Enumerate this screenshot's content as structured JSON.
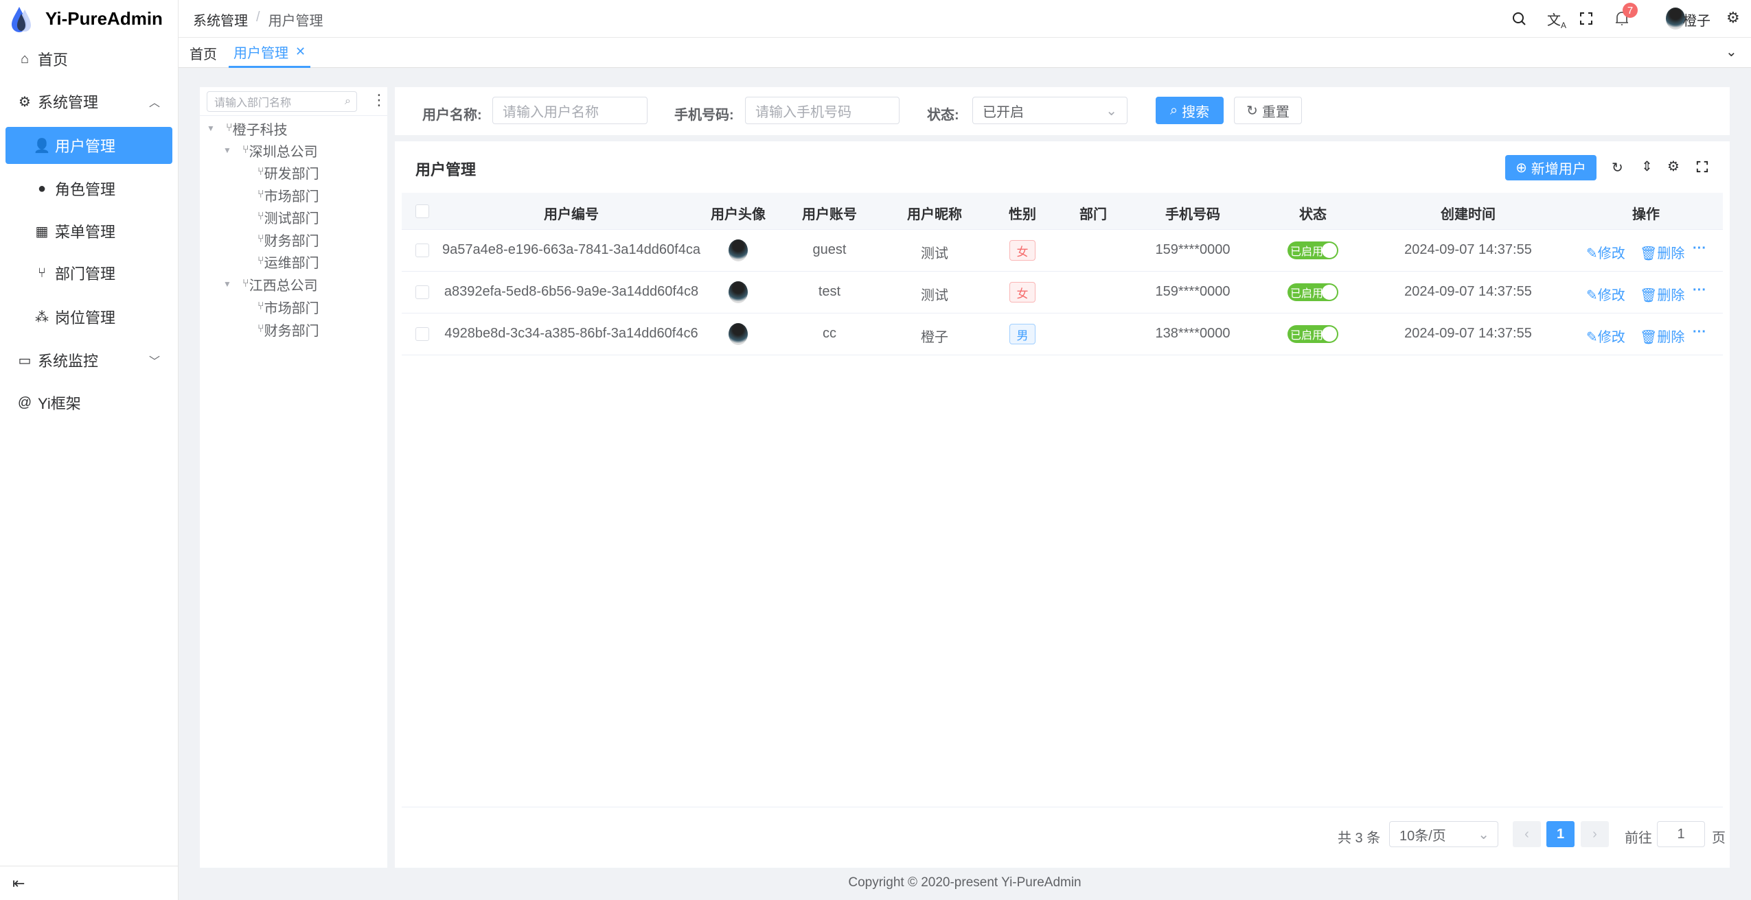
{
  "app": {
    "title": "Yi-PureAdmin",
    "footer": "Copyright © 2020-present Yi-PureAdmin"
  },
  "header": {
    "breadcrumb": [
      "系统管理",
      "用户管理"
    ],
    "notification_count": "7",
    "username": "橙子"
  },
  "tabs": [
    {
      "label": "首页",
      "active": false
    },
    {
      "label": "用户管理",
      "active": true
    }
  ],
  "sidebar": {
    "items": [
      {
        "label": "首页",
        "icon": "home-icon"
      },
      {
        "label": "系统管理",
        "icon": "gear-icon",
        "expanded": true
      },
      {
        "label": "用户管理",
        "icon": "user-icon",
        "active": true
      },
      {
        "label": "角色管理",
        "icon": "role-icon"
      },
      {
        "label": "菜单管理",
        "icon": "menu-icon"
      },
      {
        "label": "部门管理",
        "icon": "branch-icon"
      },
      {
        "label": "岗位管理",
        "icon": "post-icon"
      },
      {
        "label": "系统监控",
        "icon": "monitor-icon"
      },
      {
        "label": "Yi框架",
        "icon": "at-icon"
      }
    ]
  },
  "tree": {
    "placeholder": "请输入部门名称",
    "nodes": [
      {
        "label": "橙子科技",
        "level": 0,
        "expandable": true
      },
      {
        "label": "深圳总公司",
        "level": 1,
        "expandable": true
      },
      {
        "label": "研发部门",
        "level": 2
      },
      {
        "label": "市场部门",
        "level": 2
      },
      {
        "label": "测试部门",
        "level": 2
      },
      {
        "label": "财务部门",
        "level": 2
      },
      {
        "label": "运维部门",
        "level": 2
      },
      {
        "label": "江西总公司",
        "level": 1,
        "expandable": true
      },
      {
        "label": "市场部门",
        "level": 2
      },
      {
        "label": "财务部门",
        "level": 2
      }
    ]
  },
  "search": {
    "username_label": "用户名称:",
    "username_placeholder": "请输入用户名称",
    "phone_label": "手机号码:",
    "phone_placeholder": "请输入手机号码",
    "status_label": "状态:",
    "status_value": "已开启",
    "search_btn": "搜索",
    "reset_btn": "重置"
  },
  "table": {
    "title": "用户管理",
    "add_btn": "新增用户",
    "columns": [
      "用户编号",
      "用户头像",
      "用户账号",
      "用户昵称",
      "性别",
      "部门",
      "手机号码",
      "状态",
      "创建时间",
      "操作"
    ],
    "rows": [
      {
        "id": "9a57a4e8-e196-663a-7841-3a14dd60f4ca",
        "account": "guest",
        "nickname": "测试",
        "gender": "女",
        "dept": "",
        "phone": "159****0000",
        "status": "已启用",
        "created": "2024-09-07 14:37:55"
      },
      {
        "id": "a8392efa-5ed8-6b56-9a9e-3a14dd60f4c8",
        "account": "test",
        "nickname": "测试",
        "gender": "女",
        "dept": "",
        "phone": "159****0000",
        "status": "已启用",
        "created": "2024-09-07 14:37:55"
      },
      {
        "id": "4928be8d-3c34-a385-86bf-3a14dd60f4c6",
        "account": "cc",
        "nickname": "橙子",
        "gender": "男",
        "dept": "",
        "phone": "138****0000",
        "status": "已启用",
        "created": "2024-09-07 14:37:55"
      }
    ],
    "edit_label": "修改",
    "delete_label": "删除"
  },
  "pagination": {
    "total": "共 3 条",
    "page_size": "10条/页",
    "current": "1",
    "goto_label": "前往",
    "goto_value": "1",
    "page_suffix": "页"
  },
  "colors": {
    "primary": "#409eff",
    "success": "#67c23a",
    "danger": "#f56c6c"
  }
}
